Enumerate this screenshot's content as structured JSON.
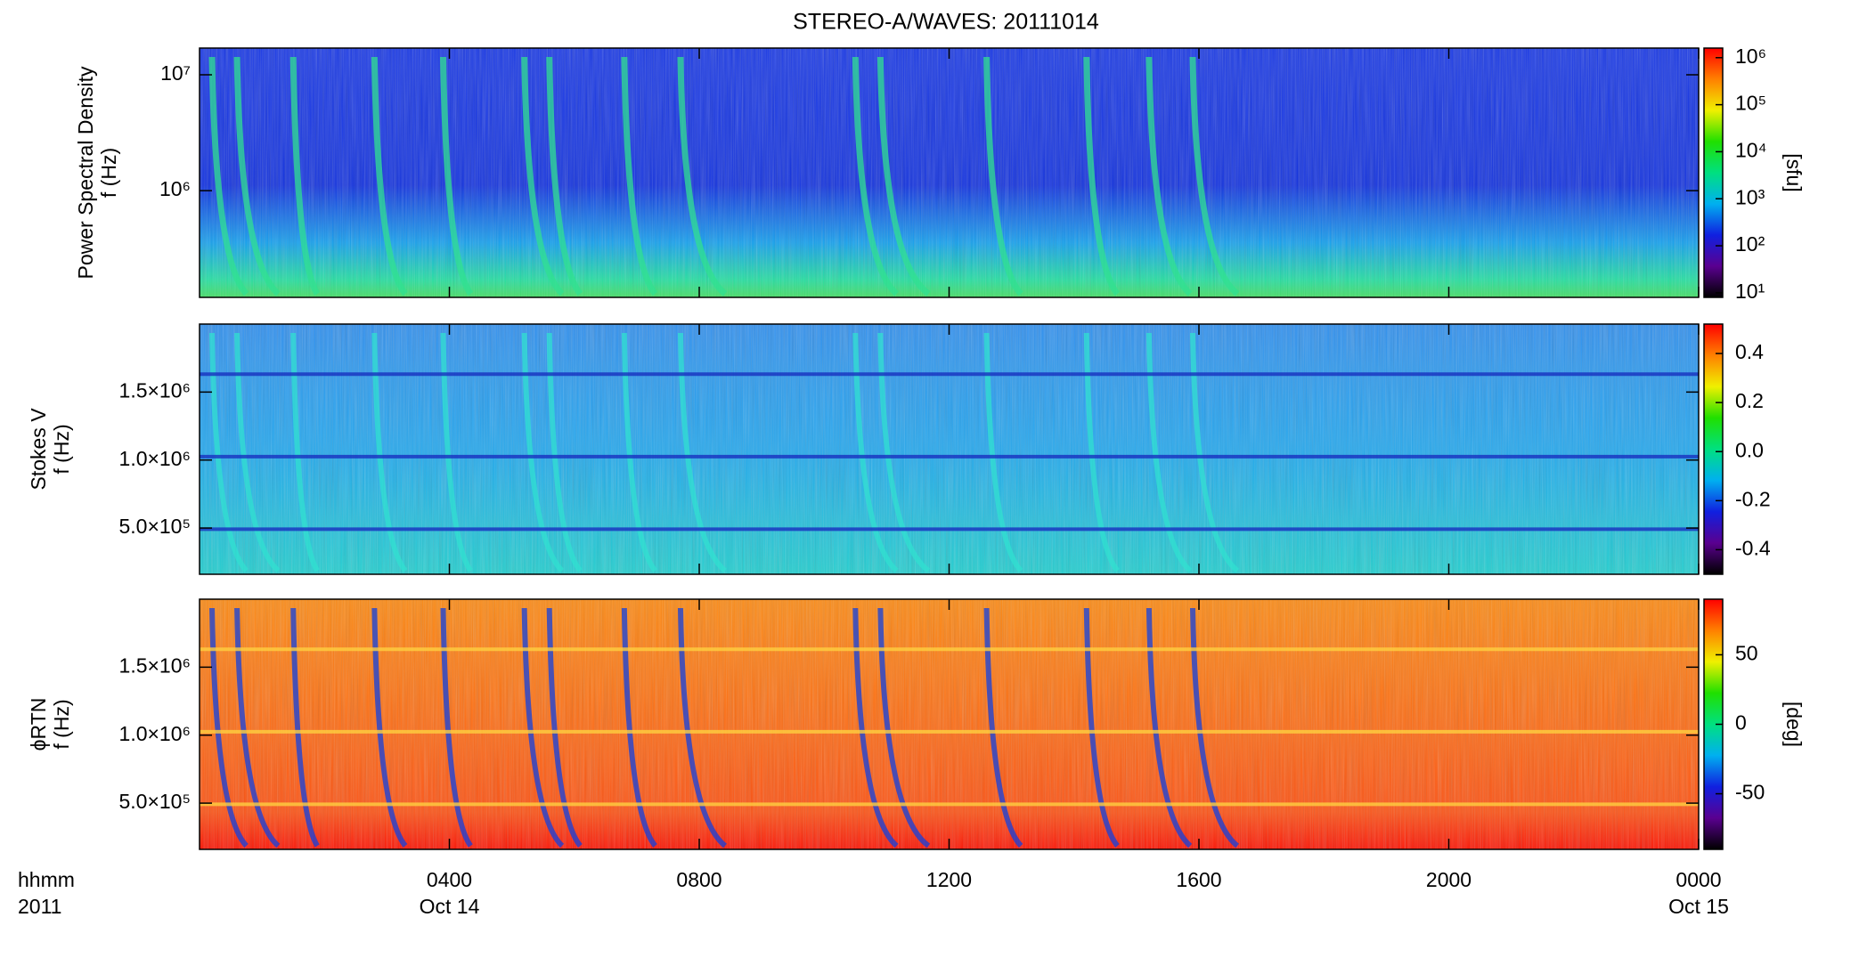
{
  "title": "STEREO-A/WAVES: 20111014",
  "x_axis": {
    "label": "hhmm",
    "sublabel": "2011",
    "xlim": [
      0,
      24
    ],
    "xticks": [
      {
        "value": 4,
        "label": "0400"
      },
      {
        "value": 8,
        "label": "0800"
      },
      {
        "value": 12,
        "label": "1200"
      },
      {
        "value": 16,
        "label": "1600"
      },
      {
        "value": 20,
        "label": "2000"
      },
      {
        "value": 24,
        "label": "0000"
      }
    ],
    "date_ticks": [
      {
        "value": 4,
        "label": "Oct 14"
      },
      {
        "value": 24,
        "label": "Oct 15"
      }
    ]
  },
  "colormap": [
    "#000000",
    "#5a0090",
    "#1020e0",
    "#00b0f0",
    "#00e080",
    "#20e000",
    "#f0f000",
    "#ff8000",
    "#ff0000"
  ],
  "chart_data": [
    {
      "type": "heatmap",
      "ylabel": [
        "Power Spectral Density",
        "f (Hz)"
      ],
      "yscale": "log",
      "ylim": [
        120000,
        17000000
      ],
      "yticks": [
        {
          "value": 1000000,
          "label": "10⁶"
        },
        {
          "value": 10000000,
          "label": "10⁷"
        }
      ],
      "colorbar": {
        "scale": "log",
        "clim": [
          8,
          1600000
        ],
        "ticks": [
          {
            "value": 10,
            "label": "10¹"
          },
          {
            "value": 100,
            "label": "10²"
          },
          {
            "value": 1000,
            "label": "10³"
          },
          {
            "value": 10000,
            "label": "10⁴"
          },
          {
            "value": 100000,
            "label": "10⁵"
          },
          {
            "value": 1000000,
            "label": "10⁶"
          }
        ],
        "label": "[sfu]"
      }
    },
    {
      "type": "heatmap",
      "ylabel": [
        "Stokes V",
        "f (Hz)"
      ],
      "yscale": "linear",
      "ylim": [
        160000,
        2000000
      ],
      "yticks": [
        {
          "value": 500000,
          "label": "5.0×10⁵"
        },
        {
          "value": 1000000,
          "label": "1.0×10⁶"
        },
        {
          "value": 1500000,
          "label": "1.5×10⁶"
        }
      ],
      "colorbar": {
        "scale": "linear",
        "clim": [
          -0.5,
          0.52
        ],
        "ticks": [
          0.4,
          0.2,
          {
            "value": 0,
            "label": "0.0"
          },
          -0.2,
          -0.4
        ]
      }
    },
    {
      "type": "heatmap",
      "ylabel": [
        "ϕRTN",
        "f (Hz)"
      ],
      "yscale": "linear",
      "ylim": [
        160000,
        2000000
      ],
      "yticks": [
        {
          "value": 500000,
          "label": "5.0×10⁵"
        },
        {
          "value": 1000000,
          "label": "1.0×10⁶"
        },
        {
          "value": 1500000,
          "label": "1.5×10⁶"
        }
      ],
      "colorbar": {
        "scale": "linear",
        "clim": [
          -90,
          90
        ],
        "ticks": [
          50,
          0,
          -50
        ],
        "label": "[deg]"
      }
    }
  ]
}
